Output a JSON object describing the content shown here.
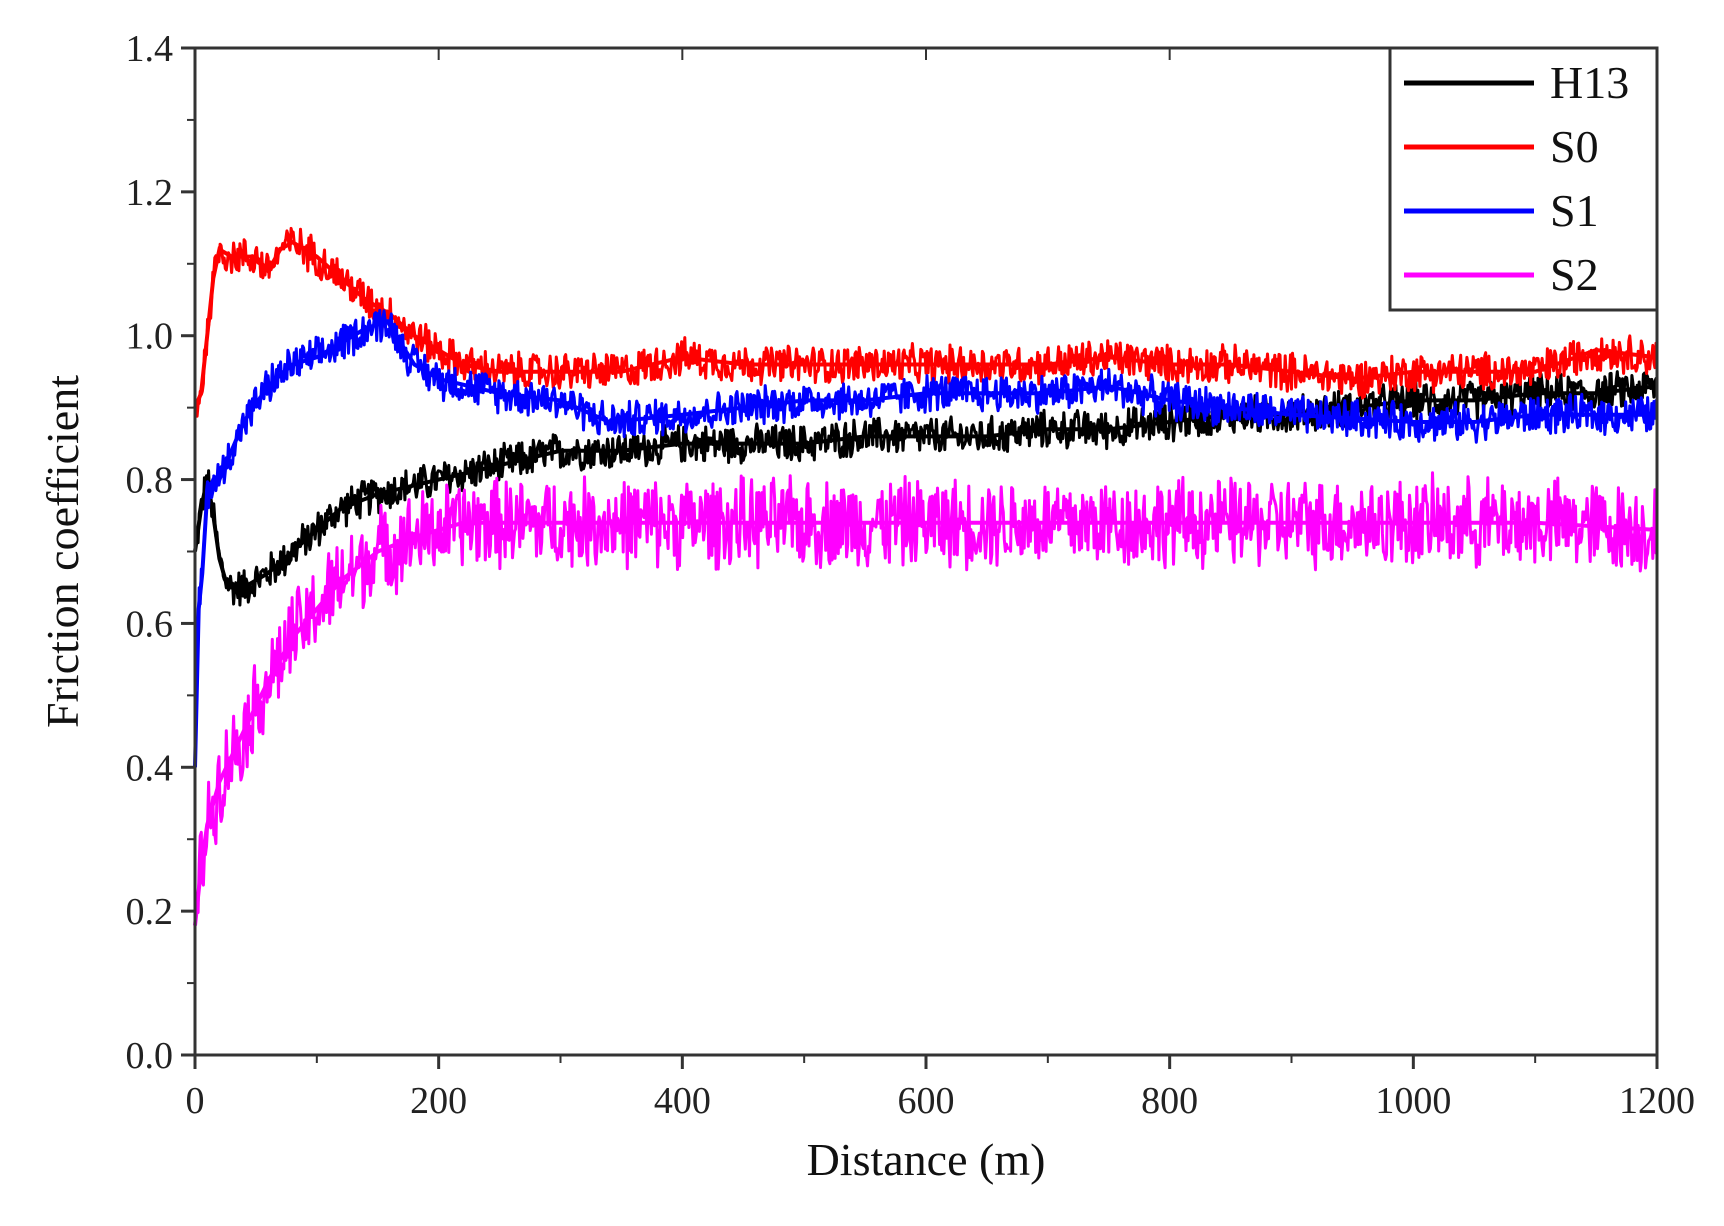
{
  "chart_data": {
    "type": "line",
    "title": "",
    "xlabel": "Distance (m)",
    "ylabel": "Friction coefficient",
    "xlim": [
      0,
      1200
    ],
    "ylim": [
      0.0,
      1.4
    ],
    "xticks": [
      0,
      200,
      400,
      600,
      800,
      1000,
      1200
    ],
    "yticks": [
      0.0,
      0.2,
      0.4,
      0.6,
      0.8,
      1.0,
      1.2,
      1.4
    ],
    "xtick_labels": [
      "0",
      "200",
      "400",
      "600",
      "800",
      "1000",
      "1200"
    ],
    "ytick_labels": [
      "0.0",
      "0.2",
      "0.4",
      "0.6",
      "0.8",
      "1.0",
      "1.2",
      "1.4"
    ],
    "grid": false,
    "legend_position": "top-right",
    "series": [
      {
        "name": "H13",
        "color": "#000000",
        "band": 0.03,
        "x": [
          0,
          5,
          10,
          15,
          20,
          25,
          30,
          40,
          50,
          60,
          80,
          100,
          120,
          150,
          200,
          250,
          300,
          350,
          400,
          450,
          500,
          550,
          600,
          650,
          700,
          750,
          800,
          850,
          900,
          950,
          1000,
          1050,
          1100,
          1150,
          1200
        ],
        "y": [
          0.7,
          0.76,
          0.8,
          0.75,
          0.69,
          0.66,
          0.65,
          0.65,
          0.66,
          0.67,
          0.7,
          0.73,
          0.76,
          0.78,
          0.8,
          0.82,
          0.84,
          0.84,
          0.85,
          0.85,
          0.85,
          0.86,
          0.86,
          0.86,
          0.87,
          0.87,
          0.88,
          0.89,
          0.89,
          0.9,
          0.91,
          0.91,
          0.92,
          0.92,
          0.93
        ]
      },
      {
        "name": "S0",
        "color": "#ff0000",
        "band": 0.03,
        "x": [
          0,
          5,
          10,
          15,
          20,
          30,
          50,
          60,
          70,
          80,
          100,
          120,
          140,
          160,
          180,
          200,
          220,
          250,
          300,
          350,
          400,
          450,
          500,
          550,
          600,
          650,
          700,
          750,
          800,
          850,
          900,
          950,
          1000,
          1050,
          1100,
          1150,
          1200
        ],
        "y": [
          0.9,
          0.92,
          1.0,
          1.08,
          1.12,
          1.11,
          1.11,
          1.09,
          1.12,
          1.13,
          1.11,
          1.08,
          1.05,
          1.03,
          1.0,
          0.98,
          0.96,
          0.95,
          0.95,
          0.95,
          0.97,
          0.96,
          0.96,
          0.96,
          0.96,
          0.96,
          0.96,
          0.97,
          0.96,
          0.96,
          0.95,
          0.94,
          0.95,
          0.95,
          0.95,
          0.98,
          0.97
        ]
      },
      {
        "name": "S1",
        "color": "#0000ff",
        "band": 0.03,
        "x": [
          0,
          3,
          6,
          10,
          15,
          20,
          40,
          60,
          80,
          100,
          120,
          140,
          158,
          165,
          180,
          200,
          250,
          300,
          340,
          400,
          450,
          500,
          550,
          600,
          650,
          700,
          750,
          800,
          850,
          900,
          1000,
          1050,
          1100,
          1150,
          1200
        ],
        "y": [
          0.4,
          0.62,
          0.67,
          0.78,
          0.8,
          0.8,
          0.88,
          0.93,
          0.96,
          0.97,
          0.99,
          1.01,
          1.02,
          1.0,
          0.96,
          0.94,
          0.92,
          0.91,
          0.88,
          0.89,
          0.9,
          0.91,
          0.91,
          0.92,
          0.92,
          0.92,
          0.93,
          0.91,
          0.9,
          0.89,
          0.88,
          0.88,
          0.89,
          0.89,
          0.89
        ]
      },
      {
        "name": "S2",
        "color": "#ff00ff",
        "band": 0.07,
        "x": [
          0,
          5,
          10,
          20,
          40,
          60,
          80,
          100,
          120,
          150,
          180,
          200,
          220,
          250,
          300,
          400,
          500,
          600,
          700,
          800,
          900,
          1000,
          1100,
          1200
        ],
        "y": [
          0.18,
          0.26,
          0.32,
          0.38,
          0.45,
          0.52,
          0.58,
          0.62,
          0.66,
          0.7,
          0.72,
          0.73,
          0.74,
          0.74,
          0.74,
          0.74,
          0.74,
          0.74,
          0.74,
          0.74,
          0.74,
          0.74,
          0.74,
          0.73
        ]
      }
    ]
  }
}
